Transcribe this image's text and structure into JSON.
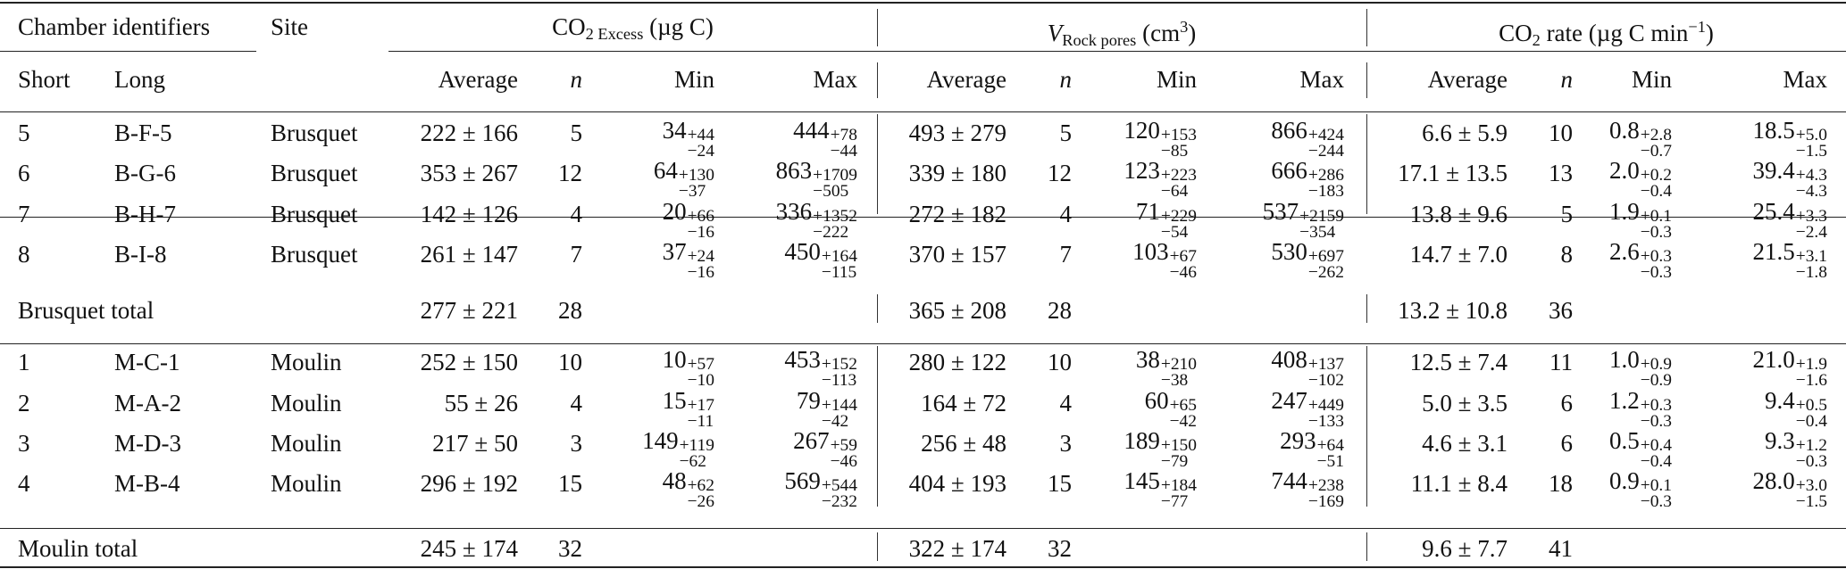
{
  "header": {
    "chamber_identifiers": "Chamber identifiers",
    "site": "Site",
    "short": "Short",
    "long": "Long",
    "co2_excess": {
      "main": "CO",
      "sub": "2 Excess",
      "unit": " (µg C)"
    },
    "v_rock": {
      "main": "V",
      "sub": "Rock pores",
      "unit": " (cm",
      "sup": "3",
      "close": ")"
    },
    "co2_rate": {
      "main": "CO",
      "sub": "2",
      "unit": " rate (µg C min",
      "sup": "−1",
      "close": ")"
    },
    "average": "Average",
    "n": "n",
    "min": "Min",
    "max": "Max"
  },
  "groups": [
    {
      "rows": [
        {
          "short": "5",
          "long": "B-F-5",
          "site": "Brusquet",
          "ex": {
            "avg": "222 ± 166",
            "n": "5",
            "min": [
              "34",
              "+44",
              "−24"
            ],
            "max": [
              "444",
              "+78",
              "−44"
            ]
          },
          "vr": {
            "avg": "493 ± 279",
            "n": "5",
            "min": [
              "120",
              "+153",
              "−85"
            ],
            "max": [
              "866",
              "+424",
              "−244"
            ]
          },
          "rt": {
            "avg": "6.6 ± 5.9",
            "n": "10",
            "min": [
              "0.8",
              "+2.8",
              "−0.7"
            ],
            "max": [
              "18.5",
              "+5.0",
              "−1.5"
            ]
          }
        },
        {
          "short": "6",
          "long": "B-G-6",
          "site": "Brusquet",
          "ex": {
            "avg": "353 ± 267",
            "n": "12",
            "min": [
              "64",
              "+130",
              "−37"
            ],
            "max": [
              "863",
              "+1709",
              "−505"
            ]
          },
          "vr": {
            "avg": "339 ± 180",
            "n": "12",
            "min": [
              "123",
              "+223",
              "−64"
            ],
            "max": [
              "666",
              "+286",
              "−183"
            ]
          },
          "rt": {
            "avg": "17.1 ± 13.5",
            "n": "13",
            "min": [
              "2.0",
              "+0.2",
              "−0.4"
            ],
            "max": [
              "39.4",
              "+4.3",
              "−4.3"
            ]
          }
        },
        {
          "short": "7",
          "long": "B-H-7",
          "site": "Brusquet",
          "ex": {
            "avg": "142 ± 126",
            "n": "4",
            "min": [
              "20",
              "+66",
              "−16"
            ],
            "max": [
              "336",
              "+1352",
              "−222"
            ]
          },
          "vr": {
            "avg": "272 ± 182",
            "n": "4",
            "min": [
              "71",
              "+229",
              "−54"
            ],
            "max": [
              "537",
              "+2159",
              "−354"
            ]
          },
          "rt": {
            "avg": "13.8 ± 9.6",
            "n": "5",
            "min": [
              "1.9",
              "+0.1",
              "−0.3"
            ],
            "max": [
              "25.4",
              "+3.3",
              "−2.4"
            ]
          }
        },
        {
          "short": "8",
          "long": "B-I-8",
          "site": "Brusquet",
          "ex": {
            "avg": "261 ± 147",
            "n": "7",
            "min": [
              "37",
              "+24",
              "−16"
            ],
            "max": [
              "450",
              "+164",
              "−115"
            ]
          },
          "vr": {
            "avg": "370 ± 157",
            "n": "7",
            "min": [
              "103",
              "+67",
              "−46"
            ],
            "max": [
              "530",
              "+697",
              "−262"
            ]
          },
          "rt": {
            "avg": "14.7 ± 7.0",
            "n": "8",
            "min": [
              "2.6",
              "+0.3",
              "−0.3"
            ],
            "max": [
              "21.5",
              "+3.1",
              "−1.8"
            ]
          }
        }
      ],
      "total": {
        "label": "Brusquet total",
        "ex": {
          "avg": "277 ± 221",
          "n": "28"
        },
        "vr": {
          "avg": "365 ± 208",
          "n": "28"
        },
        "rt": {
          "avg": "13.2 ± 10.8",
          "n": "36"
        }
      }
    },
    {
      "rows": [
        {
          "short": "1",
          "long": "M-C-1",
          "site": "Moulin",
          "ex": {
            "avg": "252 ± 150",
            "n": "10",
            "min": [
              "10",
              "+57",
              "−10"
            ],
            "max": [
              "453",
              "+152",
              "−113"
            ]
          },
          "vr": {
            "avg": "280 ± 122",
            "n": "10",
            "min": [
              "38",
              "+210",
              "−38"
            ],
            "max": [
              "408",
              "+137",
              "−102"
            ]
          },
          "rt": {
            "avg": "12.5 ± 7.4",
            "n": "11",
            "min": [
              "1.0",
              "+0.9",
              "−0.9"
            ],
            "max": [
              "21.0",
              "+1.9",
              "−1.6"
            ]
          }
        },
        {
          "short": "2",
          "long": "M-A-2",
          "site": "Moulin",
          "ex": {
            "avg": "55 ± 26",
            "n": "4",
            "min": [
              "15",
              "+17",
              "−11"
            ],
            "max": [
              "79",
              "+144",
              "−42"
            ]
          },
          "vr": {
            "avg": "164 ± 72",
            "n": "4",
            "min": [
              "60",
              "+65",
              "−42"
            ],
            "max": [
              "247",
              "+449",
              "−133"
            ]
          },
          "rt": {
            "avg": "5.0 ± 3.5",
            "n": "6",
            "min": [
              "1.2",
              "+0.3",
              "−0.3"
            ],
            "max": [
              "9.4",
              "+0.5",
              "−0.4"
            ]
          }
        },
        {
          "short": "3",
          "long": "M-D-3",
          "site": "Moulin",
          "ex": {
            "avg": "217 ± 50",
            "n": "3",
            "min": [
              "149",
              "+119",
              "−62"
            ],
            "max": [
              "267",
              "+59",
              "−46"
            ]
          },
          "vr": {
            "avg": "256 ± 48",
            "n": "3",
            "min": [
              "189",
              "+150",
              "−79"
            ],
            "max": [
              "293",
              "+64",
              "−51"
            ]
          },
          "rt": {
            "avg": "4.6 ± 3.1",
            "n": "6",
            "min": [
              "0.5",
              "+0.4",
              "−0.4"
            ],
            "max": [
              "9.3",
              "+1.2",
              "−0.3"
            ]
          }
        },
        {
          "short": "4",
          "long": "M-B-4",
          "site": "Moulin",
          "ex": {
            "avg": "296 ± 192",
            "n": "15",
            "min": [
              "48",
              "+62",
              "−26"
            ],
            "max": [
              "569",
              "+544",
              "−232"
            ]
          },
          "vr": {
            "avg": "404 ± 193",
            "n": "15",
            "min": [
              "145",
              "+184",
              "−77"
            ],
            "max": [
              "744",
              "+238",
              "−169"
            ]
          },
          "rt": {
            "avg": "11.1 ± 8.4",
            "n": "18",
            "min": [
              "0.9",
              "+0.1",
              "−0.3"
            ],
            "max": [
              "28.0",
              "+3.0",
              "−1.5"
            ]
          }
        }
      ],
      "total": {
        "label": "Moulin total",
        "ex": {
          "avg": "245 ± 174",
          "n": "32"
        },
        "vr": {
          "avg": "322 ± 174",
          "n": "32"
        },
        "rt": {
          "avg": "9.6 ± 7.7",
          "n": "41"
        }
      }
    }
  ]
}
